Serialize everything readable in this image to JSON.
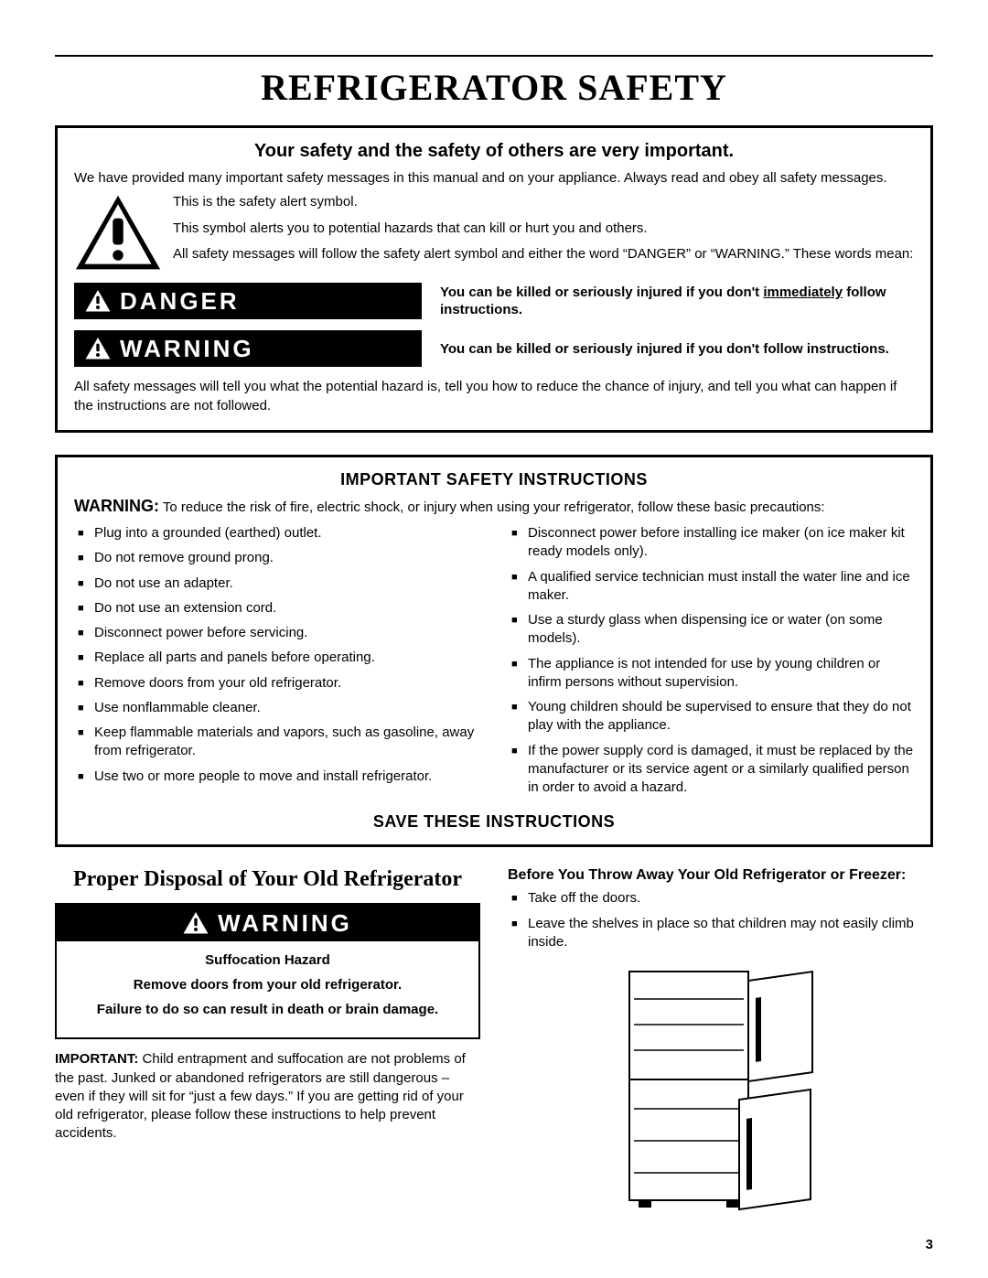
{
  "page": {
    "title": "REFRIGERATOR SAFETY",
    "number": "3"
  },
  "safety_box": {
    "heading": "Your safety and the safety of others are very important.",
    "intro": "We have provided many important safety messages in this manual and on your appliance. Always read and obey all safety messages.",
    "alert_lines": {
      "l1": "This is the safety alert symbol.",
      "l2": "This symbol alerts you to potential hazards that can kill or hurt you and others.",
      "l3": "All safety messages will follow the safety alert symbol and either the word “DANGER” or “WARNING.” These words mean:"
    },
    "danger_label": "DANGER",
    "danger_desc_a": "You can be killed or seriously injured if you don't ",
    "danger_desc_u": "immediately",
    "danger_desc_b": " follow instructions.",
    "warning_label": "WARNING",
    "warning_desc": "You can be killed or seriously injured if you don't follow instructions.",
    "footer": "All safety messages will tell you what the potential hazard is, tell you how to reduce the chance of injury, and tell you what can happen if the instructions are not followed."
  },
  "instructions": {
    "title": "IMPORTANT SAFETY INSTRUCTIONS",
    "warn_prefix": "WARNING:",
    "warn_text": " To reduce the risk of fire, electric shock, or injury when using your refrigerator, follow these basic precautions:",
    "left": [
      "Plug into a grounded (earthed) outlet.",
      "Do not remove ground prong.",
      "Do not use an adapter.",
      "Do not use an extension cord.",
      "Disconnect power before servicing.",
      "Replace all parts and panels before operating.",
      "Remove doors from your old refrigerator.",
      "Use nonflammable cleaner.",
      "Keep flammable materials and vapors, such as gasoline, away from refrigerator.",
      "Use two or more people to move and install refrigerator."
    ],
    "right": [
      "Disconnect power before installing ice maker (on ice maker kit ready models only).",
      "A qualified service technician must install the water line and ice maker.",
      "Use a sturdy glass when dispensing ice or water (on some models).",
      "The appliance is not intended for use by young children or infirm persons without supervision.",
      "Young children should be supervised to ensure that they do not play with the appliance.",
      "If the power supply cord is damaged, it must be replaced by the manufacturer or its service agent or a similarly qualified person in order to avoid a hazard."
    ],
    "save": "SAVE THESE INSTRUCTIONS"
  },
  "disposal": {
    "title": "Proper Disposal of Your Old Refrigerator",
    "warning_label": "WARNING",
    "hazard_title": "Suffocation Hazard",
    "hazard_l1": "Remove doors from your old refrigerator.",
    "hazard_l2": "Failure to do so can result in death or brain damage.",
    "important_prefix": "IMPORTANT:",
    "important_text": " Child entrapment and suffocation are not problems of the past. Junked or abandoned refrigerators are still dangerous – even if they will sit for “just a few days.” If you are getting rid of your old refrigerator, please follow these instructions to help prevent accidents."
  },
  "before": {
    "title": "Before You Throw Away Your Old Refrigerator or Freezer:",
    "items": [
      "Take off the doors.",
      "Leave the shelves in place so that children may not easily climb inside."
    ]
  },
  "colors": {
    "black": "#000000",
    "white": "#ffffff"
  }
}
